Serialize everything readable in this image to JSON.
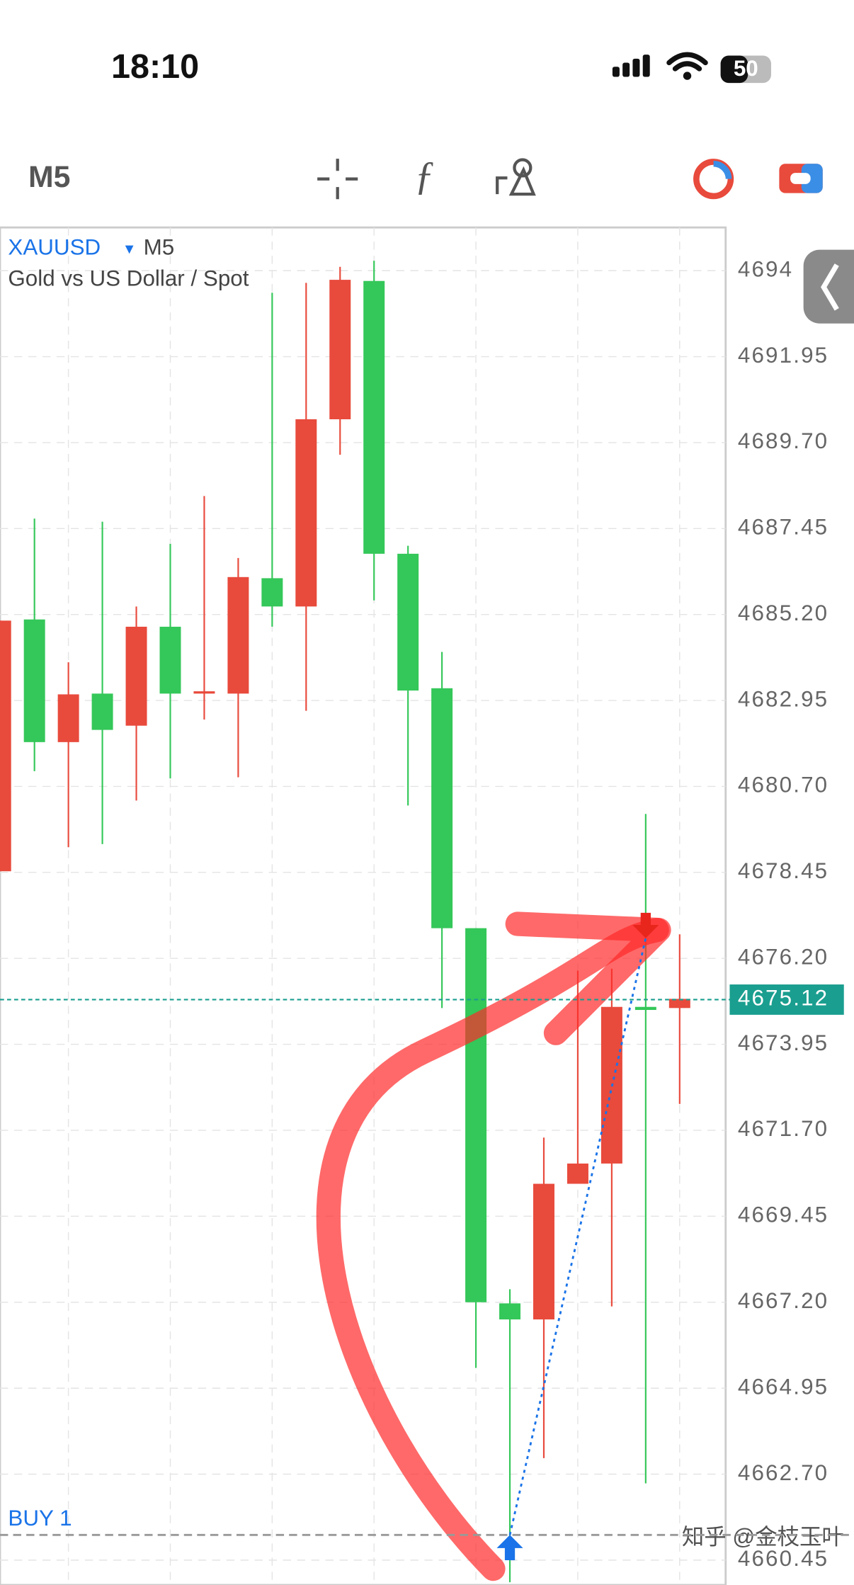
{
  "status_bar": {
    "time": "18:10",
    "battery": "50"
  },
  "toolbar": {
    "timeframe": "M5"
  },
  "chart_data": {
    "type": "candlestick",
    "symbol": "XAUUSD",
    "timeframe": "M5",
    "title": "Gold vs US Dollar / Spot",
    "open": [
      4678.48,
      4685.07,
      4681.86,
      4683.13,
      4682.29,
      4684.88,
      4683.13,
      4683.13,
      4686.15,
      4685.41,
      4690.31,
      4693.93,
      4686.79,
      4683.27,
      4676.99,
      4667.17,
      4666.75,
      4670.3,
      4670.83,
      4674.93,
      4674.9
    ],
    "high": [
      4685.04,
      4687.71,
      4683.95,
      4687.63,
      4685.41,
      4687.05,
      4688.3,
      4686.68,
      4693.62,
      4693.88,
      4694.3,
      4694.46,
      4687.0,
      4684.22,
      4676.99,
      4667.54,
      4671.51,
      4675.88,
      4675.93,
      4679.98,
      4676.83
    ],
    "low": [
      4678.48,
      4681.1,
      4679.11,
      4679.19,
      4680.33,
      4680.91,
      4682.45,
      4680.94,
      4684.88,
      4682.68,
      4689.38,
      4685.57,
      4680.2,
      4674.9,
      4665.48,
      4659.87,
      4663.12,
      4670.3,
      4667.09,
      4662.46,
      4672.39
    ],
    "close": [
      4685.04,
      4681.86,
      4683.11,
      4682.18,
      4684.88,
      4683.13,
      4683.19,
      4686.18,
      4685.41,
      4690.31,
      4693.96,
      4686.79,
      4683.21,
      4676.99,
      4667.2,
      4666.75,
      4670.3,
      4670.83,
      4674.93,
      4674.85,
      4675.14
    ],
    "up_color": "#e84a3c",
    "down_color": "#34c759",
    "ylim": [
      4659.8,
      4695.33
    ],
    "yticks": [
      {
        "value": 4694.2,
        "label": "4694"
      },
      4691.95,
      {
        "value": 4689.7,
        "label": "4689.70"
      },
      4687.45,
      {
        "value": 4685.2,
        "label": "4685.20"
      },
      4682.95,
      {
        "value": 4680.7,
        "label": "4680.70"
      },
      4678.45,
      {
        "value": 4676.2,
        "label": "4676.20"
      },
      4673.95,
      {
        "value": 4671.7,
        "label": "4671.70"
      },
      4669.45,
      {
        "value": 4667.2,
        "label": "4667.20"
      },
      4664.95,
      {
        "value": 4662.7,
        "label": "4662.70"
      },
      4660.45
    ],
    "grid": true,
    "current_price": 4675.12,
    "current_price_color": "#1a9e8f",
    "order_label": "BUY 1",
    "order_price": 4661.11,
    "trade_open": 4661.11,
    "trade_close": 4676.73
  },
  "watermark": "知乎 @金枝玉叶"
}
